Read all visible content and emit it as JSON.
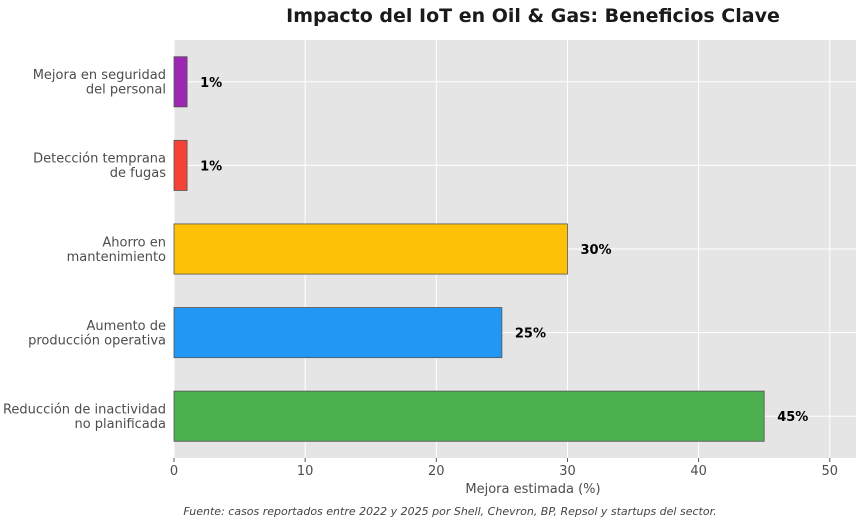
{
  "chart_data": {
    "type": "bar",
    "orientation": "horizontal",
    "title": "Impacto del IoT en Oil & Gas: Beneficios Clave",
    "xlabel": "Mejora estimada (%)",
    "ylabel": "",
    "xlim": [
      0,
      52
    ],
    "xticks": [
      "0",
      "10",
      "20",
      "30",
      "40",
      "50"
    ],
    "grid": true,
    "categories": [
      "Reducción de inactividad\nno planificada",
      "Aumento de\nproducción operativa",
      "Ahorro en\nmantenimiento",
      "Detección temprana\nde fugas",
      "Mejora en seguridad\ndel personal"
    ],
    "values": [
      45,
      25,
      30,
      1,
      1
    ],
    "value_labels": [
      "45%",
      "25%",
      "30%",
      "1%",
      "1%"
    ],
    "colors": [
      "#4caf50",
      "#2196f3",
      "#ffc107",
      "#f44336",
      "#9c27b0"
    ],
    "source_note": "Fuente: casos reportados entre 2022 y 2025 por Shell, Chevron, BP, Repsol y startups del sector."
  }
}
